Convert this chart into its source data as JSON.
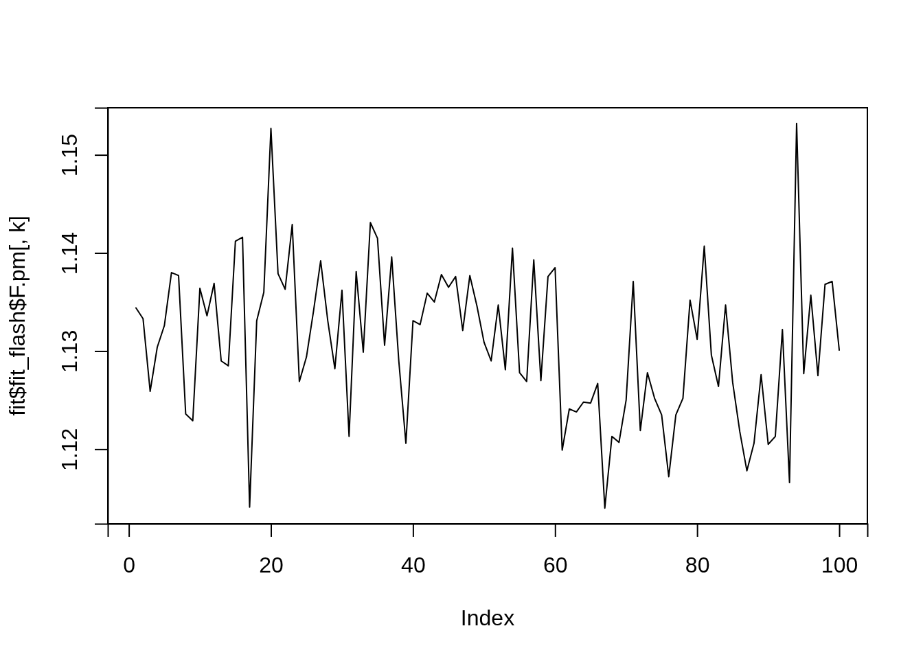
{
  "chart_data": {
    "type": "line",
    "xlabel": "Index",
    "ylabel": "fit$fit_flash$F.pm[, k]",
    "x": [
      1,
      2,
      3,
      4,
      5,
      6,
      7,
      8,
      9,
      10,
      11,
      12,
      13,
      14,
      15,
      16,
      17,
      18,
      19,
      20,
      21,
      22,
      23,
      24,
      25,
      26,
      27,
      28,
      29,
      30,
      31,
      32,
      33,
      34,
      35,
      36,
      37,
      38,
      39,
      40,
      41,
      42,
      43,
      44,
      45,
      46,
      47,
      48,
      49,
      50,
      51,
      52,
      53,
      54,
      55,
      56,
      57,
      58,
      59,
      60,
      61,
      62,
      63,
      64,
      65,
      66,
      67,
      68,
      69,
      70,
      71,
      72,
      73,
      74,
      75,
      76,
      77,
      78,
      79,
      80,
      81,
      82,
      83,
      84,
      85,
      86,
      87,
      88,
      89,
      90,
      91,
      92,
      93,
      94,
      95,
      96,
      97,
      98,
      99,
      100
    ],
    "values": [
      1.1344,
      1.1333,
      1.1259,
      1.1304,
      1.1326,
      1.138,
      1.1377,
      1.1236,
      1.1229,
      1.1364,
      1.1336,
      1.1369,
      1.129,
      1.1285,
      1.1412,
      1.1416,
      1.1141,
      1.1331,
      1.136,
      1.1527,
      1.1379,
      1.1363,
      1.1429,
      1.1269,
      1.1294,
      1.1341,
      1.1392,
      1.1331,
      1.1282,
      1.1362,
      1.1213,
      1.1381,
      1.1299,
      1.1431,
      1.1415,
      1.1306,
      1.1396,
      1.129,
      1.1206,
      1.1331,
      1.1327,
      1.1359,
      1.135,
      1.1378,
      1.1365,
      1.1376,
      1.1321,
      1.1377,
      1.1346,
      1.1309,
      1.129,
      1.1347,
      1.1281,
      1.1405,
      1.1278,
      1.1269,
      1.1393,
      1.127,
      1.1376,
      1.1385,
      1.1199,
      1.1241,
      1.1238,
      1.1248,
      1.1247,
      1.1267,
      1.114,
      1.1213,
      1.1207,
      1.125,
      1.1371,
      1.1219,
      1.1278,
      1.1252,
      1.1235,
      1.1172,
      1.1235,
      1.1252,
      1.1352,
      1.1312,
      1.1407,
      1.1296,
      1.1264,
      1.1347,
      1.1268,
      1.1218,
      1.1178,
      1.1206,
      1.1276,
      1.1205,
      1.1213,
      1.1322,
      1.1166,
      1.1532,
      1.1277,
      1.1357,
      1.1275,
      1.1368,
      1.1371,
      1.1301
    ],
    "color": "#000000",
    "xlim": [
      -2.96,
      103.96
    ],
    "ylim": [
      1.1124,
      1.1548
    ],
    "xticks": [
      0,
      20,
      40,
      60,
      80,
      100
    ],
    "yticks": [
      1.12,
      1.13,
      1.14,
      1.15
    ]
  }
}
